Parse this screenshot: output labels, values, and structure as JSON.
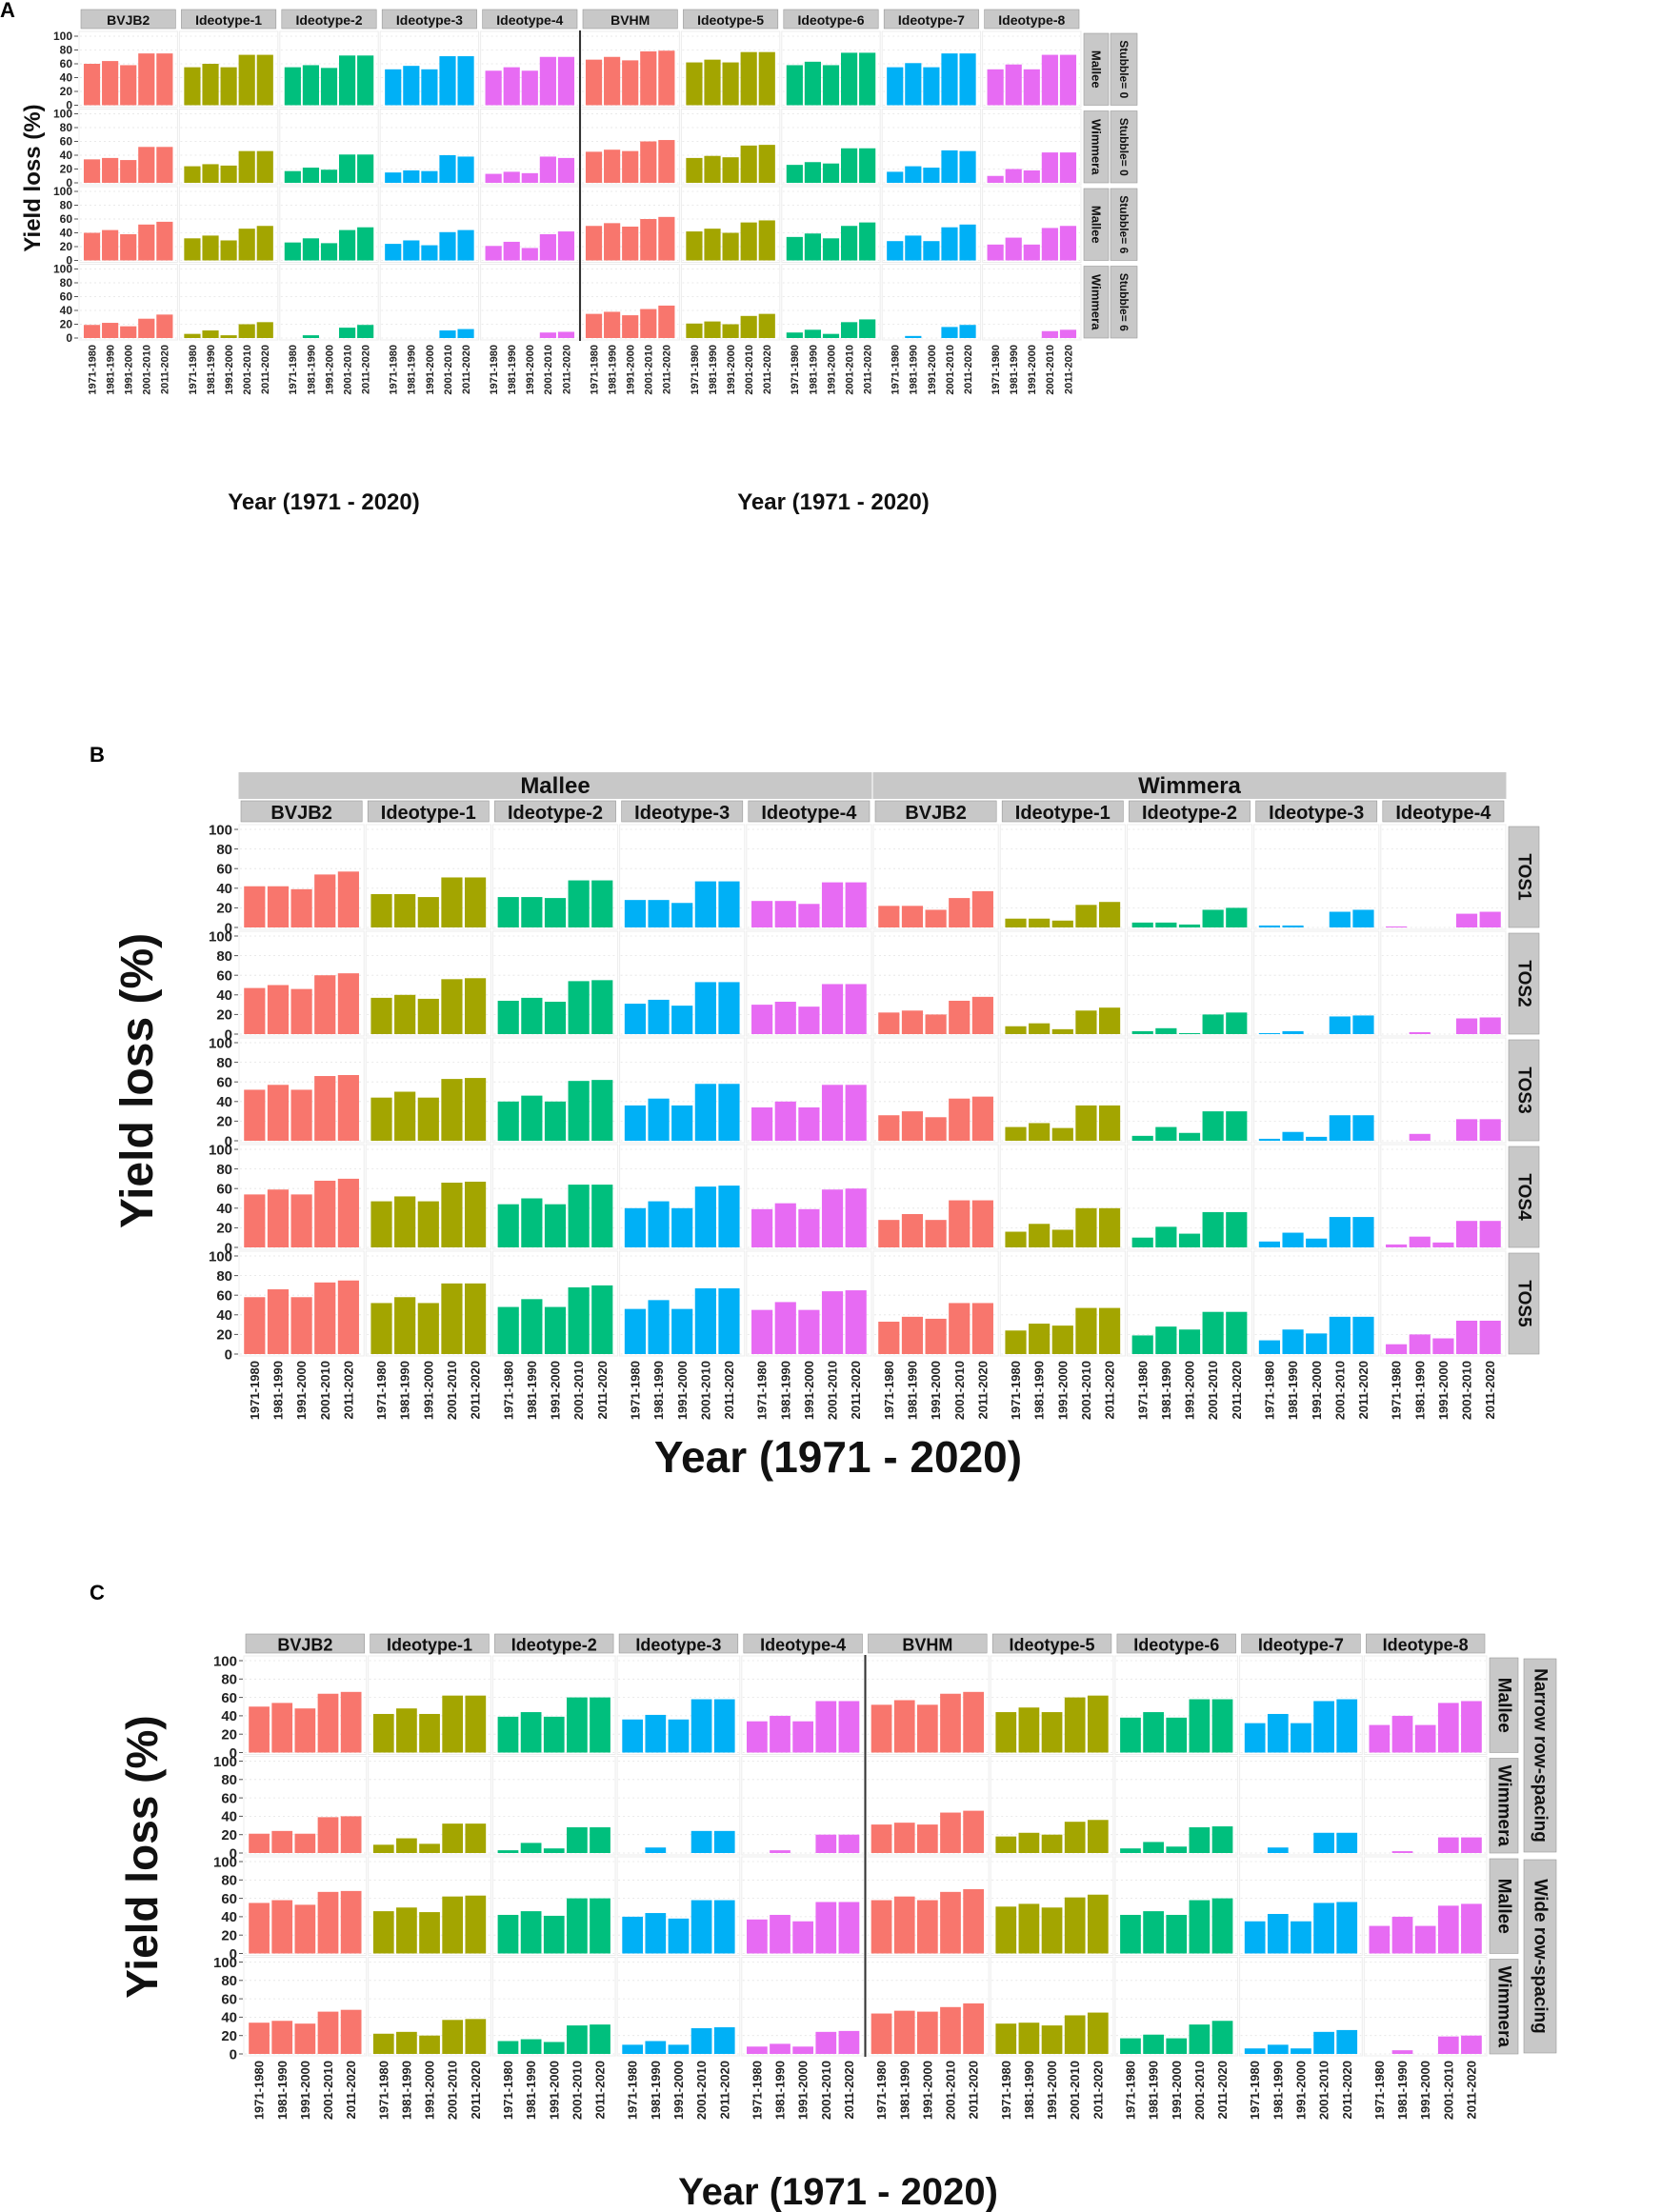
{
  "colors": {
    "BVJB2": "#F8766D",
    "BVHM": "#F8766D",
    "Ideotype-1": "#A3A500",
    "Ideotype-5": "#A3A500",
    "Ideotype-2": "#00BF7D",
    "Ideotype-6": "#00BF7D",
    "Ideotype-3": "#00B0F6",
    "Ideotype-7": "#00B0F6",
    "Ideotype-4": "#E76BF3",
    "Ideotype-8": "#E76BF3",
    "strip_bg": "#C8C8C8",
    "grid": "#E4E4E4"
  },
  "chart_data": [
    {
      "id": "A",
      "type": "bar",
      "panel_label": "A",
      "title": "",
      "xlabel": "Year (1971 - 2020)",
      "ylabel": "Yield loss (%)",
      "ylim": [
        0,
        100
      ],
      "yticks": [
        "0",
        "20",
        "40",
        "60",
        "80",
        "100"
      ],
      "categories": [
        "1971-1980",
        "1981-1990",
        "1991-2000",
        "2001-2010",
        "2011-2020"
      ],
      "col_groups": [],
      "cols": [
        "BVJB2",
        "Ideotype-1",
        "Ideotype-2",
        "Ideotype-3",
        "Ideotype-4",
        "BVHM",
        "Ideotype-5",
        "Ideotype-6",
        "Ideotype-7",
        "Ideotype-8"
      ],
      "row_groups": [],
      "rows": [
        [
          "Mallee",
          "Stubble= 0"
        ],
        [
          "Wimmera",
          "Stubble= 0"
        ],
        [
          "Mallee",
          "Stubble= 6"
        ],
        [
          "Wimmera",
          "Stubble= 6"
        ]
      ],
      "values": [
        [
          [
            60,
            64,
            58,
            75,
            75
          ],
          [
            55,
            60,
            55,
            73,
            73
          ],
          [
            55,
            58,
            54,
            72,
            72
          ],
          [
            52,
            57,
            52,
            71,
            71
          ],
          [
            50,
            55,
            50,
            70,
            70
          ],
          [
            66,
            70,
            65,
            78,
            79
          ],
          [
            62,
            66,
            62,
            77,
            77
          ],
          [
            58,
            63,
            58,
            76,
            76
          ],
          [
            55,
            61,
            55,
            75,
            75
          ],
          [
            52,
            59,
            52,
            73,
            73
          ]
        ],
        [
          [
            34,
            36,
            33,
            52,
            52
          ],
          [
            24,
            27,
            25,
            46,
            46
          ],
          [
            17,
            22,
            19,
            41,
            41
          ],
          [
            15,
            18,
            17,
            40,
            38
          ],
          [
            13,
            16,
            14,
            38,
            36
          ],
          [
            45,
            48,
            46,
            60,
            62
          ],
          [
            36,
            39,
            37,
            54,
            55
          ],
          [
            26,
            30,
            28,
            50,
            50
          ],
          [
            16,
            24,
            22,
            47,
            46
          ],
          [
            10,
            20,
            18,
            44,
            44
          ]
        ],
        [
          [
            40,
            44,
            38,
            52,
            56
          ],
          [
            32,
            36,
            29,
            46,
            50
          ],
          [
            26,
            32,
            25,
            44,
            48
          ],
          [
            24,
            29,
            22,
            41,
            44
          ],
          [
            21,
            27,
            18,
            38,
            42
          ],
          [
            50,
            54,
            49,
            60,
            63
          ],
          [
            42,
            46,
            40,
            55,
            58
          ],
          [
            34,
            39,
            32,
            50,
            55
          ],
          [
            28,
            36,
            28,
            48,
            52
          ],
          [
            23,
            33,
            23,
            47,
            50
          ]
        ],
        [
          [
            19,
            22,
            17,
            28,
            34
          ],
          [
            6,
            11,
            4,
            20,
            23
          ],
          [
            0,
            4,
            0,
            15,
            19
          ],
          [
            0,
            0,
            0,
            11,
            13
          ],
          [
            0,
            0,
            0,
            8,
            9
          ],
          [
            35,
            38,
            33,
            42,
            47
          ],
          [
            21,
            24,
            20,
            32,
            35
          ],
          [
            8,
            12,
            6,
            23,
            27
          ],
          [
            0,
            3,
            0,
            16,
            19
          ],
          [
            0,
            0,
            0,
            10,
            12
          ]
        ]
      ]
    },
    {
      "id": "B",
      "type": "bar",
      "panel_label": "B",
      "title": "",
      "xlabel": "Year (1971 - 2020)",
      "ylabel": "Yield loss (%)",
      "ylim": [
        0,
        100
      ],
      "yticks": [
        "0",
        "20",
        "40",
        "60",
        "80",
        "100"
      ],
      "categories": [
        "1971-1980",
        "1981-1990",
        "1991-2000",
        "2001-2010",
        "2011-2020"
      ],
      "col_groups": [
        {
          "label": "Mallee",
          "span": 5
        },
        {
          "label": "Wimmera",
          "span": 5
        }
      ],
      "cols": [
        "BVJB2",
        "Ideotype-1",
        "Ideotype-2",
        "Ideotype-3",
        "Ideotype-4",
        "BVJB2",
        "Ideotype-1",
        "Ideotype-2",
        "Ideotype-3",
        "Ideotype-4"
      ],
      "row_groups": [],
      "rows": [
        [
          "TOS1"
        ],
        [
          "TOS2"
        ],
        [
          "TOS3"
        ],
        [
          "TOS4"
        ],
        [
          "TOS5"
        ]
      ],
      "values": [
        [
          [
            42,
            42,
            39,
            54,
            57
          ],
          [
            34,
            34,
            31,
            51,
            51
          ],
          [
            31,
            31,
            30,
            48,
            48
          ],
          [
            28,
            28,
            25,
            47,
            47
          ],
          [
            27,
            27,
            24,
            46,
            46
          ],
          [
            22,
            22,
            18,
            30,
            37
          ],
          [
            9,
            9,
            7,
            23,
            26
          ],
          [
            5,
            5,
            3,
            18,
            20
          ],
          [
            2,
            2,
            0,
            16,
            18
          ],
          [
            1,
            0,
            0,
            14,
            16
          ]
        ],
        [
          [
            47,
            50,
            46,
            60,
            62
          ],
          [
            37,
            40,
            36,
            56,
            57
          ],
          [
            34,
            37,
            33,
            54,
            55
          ],
          [
            31,
            35,
            29,
            53,
            53
          ],
          [
            30,
            33,
            28,
            51,
            51
          ],
          [
            22,
            24,
            20,
            34,
            38
          ],
          [
            8,
            11,
            5,
            24,
            27
          ],
          [
            3,
            6,
            1,
            20,
            22
          ],
          [
            1,
            3,
            0,
            18,
            19
          ],
          [
            0,
            2,
            0,
            16,
            17
          ]
        ],
        [
          [
            52,
            57,
            52,
            66,
            67
          ],
          [
            44,
            50,
            44,
            63,
            64
          ],
          [
            40,
            46,
            40,
            61,
            62
          ],
          [
            36,
            43,
            36,
            58,
            58
          ],
          [
            34,
            40,
            34,
            57,
            57
          ],
          [
            26,
            30,
            24,
            43,
            45
          ],
          [
            14,
            18,
            13,
            36,
            36
          ],
          [
            5,
            14,
            8,
            30,
            30
          ],
          [
            2,
            9,
            4,
            26,
            26
          ],
          [
            0,
            7,
            0,
            22,
            22
          ]
        ],
        [
          [
            54,
            59,
            54,
            68,
            70
          ],
          [
            47,
            52,
            47,
            66,
            67
          ],
          [
            44,
            50,
            44,
            64,
            64
          ],
          [
            40,
            47,
            40,
            62,
            63
          ],
          [
            39,
            45,
            39,
            59,
            60
          ],
          [
            28,
            34,
            28,
            48,
            48
          ],
          [
            16,
            24,
            18,
            40,
            40
          ],
          [
            10,
            21,
            14,
            36,
            36
          ],
          [
            6,
            15,
            9,
            31,
            31
          ],
          [
            3,
            11,
            5,
            27,
            27
          ]
        ],
        [
          [
            58,
            66,
            58,
            73,
            75
          ],
          [
            52,
            58,
            52,
            72,
            72
          ],
          [
            48,
            56,
            48,
            68,
            70
          ],
          [
            46,
            55,
            46,
            67,
            67
          ],
          [
            45,
            53,
            45,
            64,
            65
          ],
          [
            33,
            38,
            36,
            52,
            52
          ],
          [
            24,
            31,
            29,
            47,
            47
          ],
          [
            19,
            28,
            25,
            43,
            43
          ],
          [
            14,
            25,
            21,
            38,
            38
          ],
          [
            10,
            20,
            16,
            34,
            34
          ]
        ]
      ]
    },
    {
      "id": "C",
      "type": "bar",
      "panel_label": "C",
      "title": "",
      "xlabel": "Year (1971 - 2020)",
      "ylabel": "Yield loss (%)",
      "ylim": [
        0,
        100
      ],
      "yticks": [
        "0",
        "20",
        "40",
        "60",
        "80",
        "100"
      ],
      "categories": [
        "1971-1980",
        "1981-1990",
        "1991-2000",
        "2001-2010",
        "2011-2020"
      ],
      "col_groups": [],
      "cols": [
        "BVJB2",
        "Ideotype-1",
        "Ideotype-2",
        "Ideotype-3",
        "Ideotype-4",
        "BVHM",
        "Ideotype-5",
        "Ideotype-6",
        "Ideotype-7",
        "Ideotype-8"
      ],
      "row_groups": [
        {
          "label": "Narrow row-spacing",
          "span": 2
        },
        {
          "label": "Wide row-spacing",
          "span": 2
        }
      ],
      "rows": [
        [
          "Mallee"
        ],
        [
          "Wimmera"
        ],
        [
          "Mallee"
        ],
        [
          "Wimmera"
        ]
      ],
      "values": [
        [
          [
            50,
            54,
            48,
            64,
            66
          ],
          [
            42,
            48,
            42,
            62,
            62
          ],
          [
            39,
            44,
            39,
            60,
            60
          ],
          [
            36,
            41,
            36,
            58,
            58
          ],
          [
            34,
            40,
            34,
            56,
            56
          ],
          [
            52,
            57,
            52,
            64,
            66
          ],
          [
            44,
            49,
            44,
            60,
            62
          ],
          [
            38,
            44,
            38,
            58,
            58
          ],
          [
            32,
            42,
            32,
            56,
            58
          ],
          [
            30,
            40,
            30,
            54,
            56
          ]
        ],
        [
          [
            21,
            24,
            21,
            39,
            40
          ],
          [
            9,
            16,
            10,
            32,
            32
          ],
          [
            3,
            11,
            5,
            28,
            28
          ],
          [
            0,
            6,
            0,
            24,
            24
          ],
          [
            0,
            3,
            0,
            20,
            20
          ],
          [
            31,
            33,
            31,
            44,
            46
          ],
          [
            18,
            22,
            20,
            34,
            36
          ],
          [
            5,
            12,
            7,
            28,
            29
          ],
          [
            0,
            6,
            0,
            22,
            22
          ],
          [
            0,
            2,
            0,
            17,
            17
          ]
        ],
        [
          [
            55,
            58,
            53,
            67,
            68
          ],
          [
            46,
            50,
            45,
            62,
            63
          ],
          [
            42,
            46,
            41,
            60,
            60
          ],
          [
            40,
            44,
            38,
            58,
            58
          ],
          [
            37,
            42,
            35,
            56,
            56
          ],
          [
            58,
            62,
            58,
            67,
            70
          ],
          [
            51,
            54,
            50,
            61,
            64
          ],
          [
            42,
            46,
            42,
            58,
            60
          ],
          [
            35,
            43,
            35,
            55,
            56
          ],
          [
            30,
            40,
            30,
            52,
            54
          ]
        ],
        [
          [
            34,
            36,
            33,
            46,
            48
          ],
          [
            22,
            24,
            20,
            37,
            38
          ],
          [
            14,
            16,
            13,
            31,
            32
          ],
          [
            10,
            14,
            10,
            28,
            29
          ],
          [
            8,
            11,
            8,
            24,
            25
          ],
          [
            44,
            47,
            46,
            51,
            55
          ],
          [
            33,
            34,
            31,
            42,
            45
          ],
          [
            17,
            21,
            17,
            32,
            36
          ],
          [
            6,
            10,
            6,
            24,
            26
          ],
          [
            0,
            4,
            0,
            19,
            20
          ]
        ]
      ]
    }
  ]
}
